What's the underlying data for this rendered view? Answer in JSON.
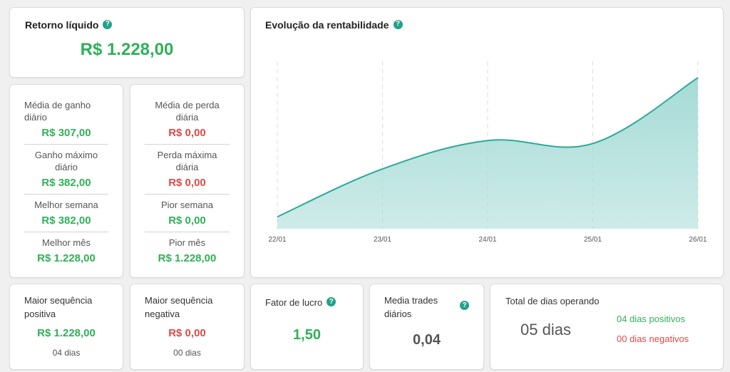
{
  "retorno": {
    "title": "Retorno líquido",
    "value": "R$ 1.228,00"
  },
  "gains": [
    {
      "label": "Média de ganho diário",
      "value": "R$ 307,00"
    },
    {
      "label": "Ganho máximo diário",
      "value": "R$ 382,00"
    },
    {
      "label": "Melhor semana",
      "value": "R$ 382,00"
    },
    {
      "label": "Melhor mês",
      "value": "R$ 1.228,00"
    }
  ],
  "losses": [
    {
      "label": "Média de perda diária",
      "value": "R$ 0,00"
    },
    {
      "label": "Perda máxima diária",
      "value": "R$ 0,00"
    },
    {
      "label": "Pior semana",
      "value": "R$ 0,00"
    },
    {
      "label": "Pior mês",
      "value": "R$ 1.228,00"
    }
  ],
  "chart": {
    "title": "Evolução da rentabilidade"
  },
  "chart_data": {
    "type": "area",
    "title": "Evolução da rentabilidade",
    "x": [
      "22/01",
      "23/01",
      "24/01",
      "25/01",
      "26/01"
    ],
    "values": [
      80,
      400,
      590,
      570,
      1010
    ],
    "ylim": [
      0,
      1120
    ],
    "grid": "vertical-dashed",
    "color": "#2aa99a",
    "fill": "#a6dbd6"
  },
  "seq_pos": {
    "label": "Maior sequência positiva",
    "value": "R$ 1.228,00",
    "days": "04 dias"
  },
  "seq_neg": {
    "label": "Maior sequência negativa",
    "value": "R$ 0,00",
    "days": "00 dias"
  },
  "fator": {
    "label": "Fator de lucro",
    "value": "1,50"
  },
  "media_trades": {
    "label": "Media trades diários",
    "value": "0,04"
  },
  "dias": {
    "label": "Total de dias operando",
    "total": "05 dias",
    "positivos": "04 dias positivos",
    "negativos": "00 dias negativos"
  },
  "colors": {
    "green": "#2fb157",
    "red": "#e04848",
    "accent": "#23a18a"
  },
  "icons": {
    "help": "question-circle-icon"
  }
}
